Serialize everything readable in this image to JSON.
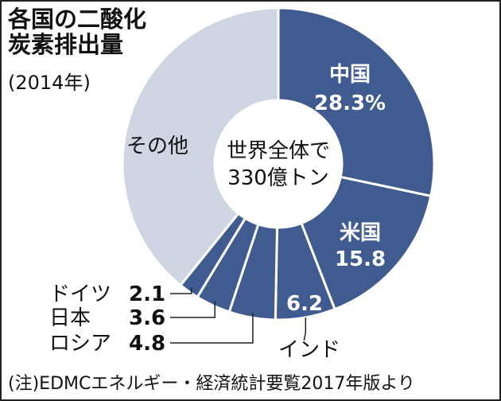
{
  "title_lines": [
    "各国の二酸化",
    "炭素排出量"
  ],
  "subtitle": "(2014年)",
  "center_lines": [
    "世界全体で",
    "330億トン"
  ],
  "footnote": "(注)EDMCエネルギー・経済統計要覧2017年版より",
  "colors": {
    "highlight": "#3f5b8f",
    "other": "#cfd5e3",
    "separator": "#ffffff"
  },
  "chart_data": {
    "type": "pie",
    "donut": true,
    "unit": "%",
    "slices": [
      {
        "label": "中国",
        "value": 28.3,
        "value_label": "28.3%",
        "highlight": true
      },
      {
        "label": "米国",
        "value": 15.8,
        "value_label": "15.8",
        "highlight": true
      },
      {
        "label": "インド",
        "value": 6.2,
        "value_label": "6.2",
        "highlight": true
      },
      {
        "label": "ロシア",
        "value": 4.8,
        "value_label": "4.8",
        "highlight": true
      },
      {
        "label": "日本",
        "value": 3.6,
        "value_label": "3.6",
        "highlight": true
      },
      {
        "label": "ドイツ",
        "value": 2.1,
        "value_label": "2.1",
        "highlight": true
      },
      {
        "label": "その他",
        "value": 39.2,
        "value_label": "",
        "highlight": false
      }
    ]
  }
}
